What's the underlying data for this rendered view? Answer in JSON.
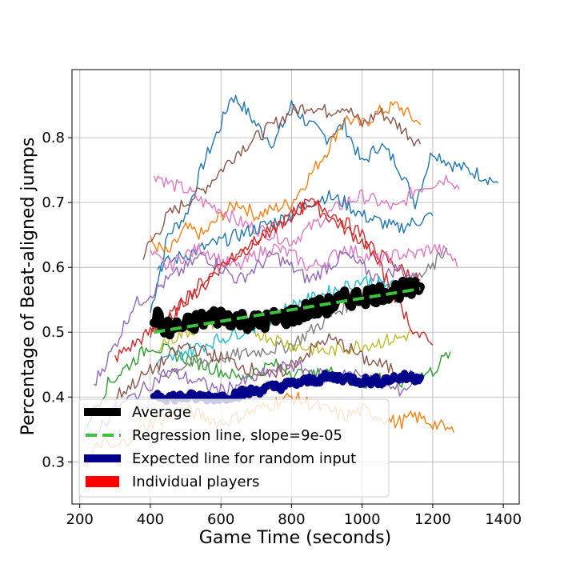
{
  "chart_data": {
    "type": "line",
    "title": "",
    "xlabel": "Game Time (seconds)",
    "ylabel": "Percentage of Beat-aligned jumps",
    "xlim": [
      178,
      1445
    ],
    "ylim": [
      0.235,
      0.905
    ],
    "xticks": [
      200,
      400,
      600,
      800,
      1000,
      1200,
      1400
    ],
    "yticks": [
      0.3,
      0.4,
      0.5,
      0.6,
      0.7,
      0.8
    ],
    "grid": true,
    "legend_position": "lower-left",
    "legend": [
      {
        "label": "Average",
        "color": "#000000",
        "style": "solid"
      },
      {
        "label": "Regression line, slope=9e-05",
        "color": "#3dc23d",
        "style": "dashed"
      },
      {
        "label": "Expected line for random input",
        "color": "#00008b",
        "style": "solid"
      },
      {
        "label": "Individual players",
        "color": "#ff0000",
        "style": "patch"
      }
    ],
    "average": {
      "name": "Average",
      "color": "#000000",
      "x": [
        410,
        450,
        500,
        550,
        600,
        650,
        700,
        750,
        800,
        850,
        900,
        950,
        1000,
        1050,
        1100,
        1150,
        1165
      ],
      "y": [
        0.525,
        0.505,
        0.51,
        0.52,
        0.525,
        0.52,
        0.515,
        0.52,
        0.525,
        0.535,
        0.54,
        0.55,
        0.555,
        0.56,
        0.565,
        0.565,
        0.57
      ]
    },
    "regression": {
      "name": "Regression line, slope=9e-05",
      "color": "#3dc23d",
      "x": [
        410,
        1165
      ],
      "y": [
        0.5,
        0.567
      ]
    },
    "random_expected": {
      "name": "Expected line for random input",
      "color": "#00008b",
      "x": [
        410,
        450,
        500,
        550,
        600,
        650,
        700,
        750,
        800,
        850,
        900,
        950,
        1000,
        1050,
        1100,
        1165
      ],
      "y": [
        0.405,
        0.4,
        0.4,
        0.4,
        0.4,
        0.405,
        0.41,
        0.415,
        0.42,
        0.425,
        0.43,
        0.43,
        0.425,
        0.425,
        0.43,
        0.43
      ]
    },
    "players": [
      {
        "color": "#1f77b4",
        "x": [
          400,
          450,
          500,
          550,
          600,
          630,
          660,
          700,
          750,
          800,
          850,
          900,
          950,
          1000,
          1050,
          1100,
          1150,
          1200,
          1250,
          1300,
          1350,
          1385
        ],
        "y": [
          0.53,
          0.65,
          0.68,
          0.76,
          0.82,
          0.865,
          0.85,
          0.82,
          0.79,
          0.85,
          0.82,
          0.8,
          0.82,
          0.76,
          0.79,
          0.76,
          0.7,
          0.78,
          0.76,
          0.75,
          0.74,
          0.73
        ]
      },
      {
        "color": "#ff7f0e",
        "x": [
          400,
          450,
          500,
          550,
          600,
          650,
          700,
          750,
          800,
          850,
          900,
          950,
          1000,
          1050,
          1100,
          1165
        ],
        "y": [
          0.64,
          0.62,
          0.66,
          0.65,
          0.68,
          0.7,
          0.68,
          0.69,
          0.7,
          0.74,
          0.78,
          0.83,
          0.82,
          0.84,
          0.85,
          0.82
        ]
      },
      {
        "color": "#8c564b",
        "x": [
          380,
          450,
          500,
          550,
          600,
          650,
          700,
          750,
          800,
          850,
          900,
          950,
          1000,
          1050,
          1100,
          1165
        ],
        "y": [
          0.62,
          0.68,
          0.7,
          0.72,
          0.75,
          0.78,
          0.8,
          0.82,
          0.84,
          0.85,
          0.84,
          0.85,
          0.82,
          0.84,
          0.82,
          0.79
        ]
      },
      {
        "color": "#e377c2",
        "x": [
          410,
          450,
          500,
          550,
          600,
          650,
          700,
          750,
          800,
          850,
          900,
          950,
          1000,
          1050,
          1100,
          1150,
          1200,
          1250,
          1275
        ],
        "y": [
          0.745,
          0.73,
          0.72,
          0.7,
          0.69,
          0.67,
          0.66,
          0.65,
          0.64,
          0.66,
          0.68,
          0.7,
          0.71,
          0.7,
          0.69,
          0.72,
          0.73,
          0.74,
          0.72
        ]
      },
      {
        "color": "#1f77b4",
        "x": [
          420,
          500,
          600,
          700,
          800,
          850,
          900,
          950,
          1000,
          1100,
          1200
        ],
        "y": [
          0.6,
          0.62,
          0.64,
          0.66,
          0.68,
          0.7,
          0.71,
          0.7,
          0.68,
          0.66,
          0.68
        ]
      },
      {
        "color": "#d62728",
        "x": [
          300,
          350,
          400,
          450,
          500,
          550,
          600,
          650,
          700,
          750,
          800,
          850,
          900,
          950,
          1000,
          1050,
          1100,
          1165
        ],
        "y": [
          0.46,
          0.48,
          0.5,
          0.52,
          0.55,
          0.58,
          0.6,
          0.62,
          0.64,
          0.66,
          0.68,
          0.7,
          0.68,
          0.66,
          0.64,
          0.62,
          0.6,
          0.58
        ]
      },
      {
        "color": "#e377c2",
        "x": [
          400,
          450,
          500,
          550,
          600,
          650,
          700,
          750,
          800,
          850,
          900,
          950,
          1000,
          1050,
          1100,
          1150,
          1200,
          1250,
          1270
        ],
        "y": [
          0.62,
          0.6,
          0.62,
          0.63,
          0.61,
          0.6,
          0.62,
          0.63,
          0.62,
          0.6,
          0.61,
          0.63,
          0.62,
          0.61,
          0.62,
          0.62,
          0.63,
          0.62,
          0.6
        ]
      },
      {
        "color": "#9467bd",
        "x": [
          240,
          300,
          350,
          400,
          450,
          500,
          550,
          600,
          650,
          700,
          750,
          800,
          850,
          900,
          950,
          1000,
          1050,
          1100,
          1150
        ],
        "y": [
          0.42,
          0.48,
          0.54,
          0.56,
          0.58,
          0.6,
          0.62,
          0.6,
          0.58,
          0.6,
          0.62,
          0.6,
          0.58,
          0.6,
          0.62,
          0.6,
          0.58,
          0.6,
          0.58
        ]
      },
      {
        "color": "#2ca02c",
        "x": [
          220,
          280,
          340,
          400,
          450,
          500,
          550,
          600,
          650,
          700,
          750,
          800,
          850,
          900,
          950,
          1000,
          1050,
          1100,
          1150,
          1200,
          1250
        ],
        "y": [
          0.36,
          0.42,
          0.45,
          0.48,
          0.47,
          0.46,
          0.45,
          0.44,
          0.43,
          0.44,
          0.45,
          0.44,
          0.43,
          0.44,
          0.43,
          0.42,
          0.43,
          0.42,
          0.43,
          0.44,
          0.47
        ]
      },
      {
        "color": "#7f7f7f",
        "x": [
          420,
          500,
          600,
          700,
          800,
          850,
          900,
          950,
          1000,
          1050,
          1100,
          1150,
          1200,
          1240
        ],
        "y": [
          0.43,
          0.45,
          0.46,
          0.47,
          0.48,
          0.5,
          0.52,
          0.54,
          0.55,
          0.56,
          0.57,
          0.58,
          0.6,
          0.63
        ]
      },
      {
        "color": "#ff7f0e",
        "x": [
          220,
          260,
          300,
          350,
          400,
          450,
          500,
          550,
          600,
          650,
          700,
          750,
          800,
          850,
          900,
          950,
          1000,
          1050,
          1100,
          1150,
          1200,
          1260
        ],
        "y": [
          0.3,
          0.33,
          0.32,
          0.34,
          0.36,
          0.37,
          0.38,
          0.37,
          0.36,
          0.37,
          0.38,
          0.39,
          0.4,
          0.39,
          0.38,
          0.37,
          0.38,
          0.37,
          0.36,
          0.37,
          0.36,
          0.345
        ]
      },
      {
        "color": "#bcbd22",
        "x": [
          420,
          500,
          600,
          700,
          800,
          900,
          1000,
          1100,
          1150
        ],
        "y": [
          0.48,
          0.5,
          0.52,
          0.5,
          0.48,
          0.47,
          0.48,
          0.49,
          0.5
        ]
      },
      {
        "color": "#17becf",
        "x": [
          420,
          500,
          600,
          700,
          800,
          900,
          1000,
          1100,
          1150
        ],
        "y": [
          0.45,
          0.47,
          0.49,
          0.51,
          0.54,
          0.56,
          0.58,
          0.57,
          0.56
        ]
      },
      {
        "color": "#d62728",
        "x": [
          400,
          450,
          500,
          550,
          600,
          650,
          700,
          750,
          800,
          850,
          900,
          950,
          1000,
          1050,
          1100,
          1150,
          1200
        ],
        "y": [
          0.5,
          0.52,
          0.55,
          0.57,
          0.6,
          0.62,
          0.64,
          0.66,
          0.68,
          0.7,
          0.69,
          0.67,
          0.65,
          0.6,
          0.55,
          0.5,
          0.48
        ]
      },
      {
        "color": "#9467bd",
        "x": [
          250,
          300,
          350,
          400,
          450,
          500,
          550,
          600,
          650,
          700,
          750,
          800,
          850,
          900,
          950,
          1000,
          1050,
          1100,
          1150
        ],
        "y": [
          0.35,
          0.38,
          0.4,
          0.42,
          0.44,
          0.43,
          0.42,
          0.41,
          0.42,
          0.43,
          0.44,
          0.45,
          0.44,
          0.43,
          0.44,
          0.43,
          0.42,
          0.41,
          0.42
        ]
      },
      {
        "color": "#8c564b",
        "x": [
          300,
          350,
          400,
          450,
          500,
          550,
          600,
          650,
          700,
          750,
          800,
          850,
          900,
          950,
          1000,
          1050,
          1100,
          1150
        ],
        "y": [
          0.4,
          0.42,
          0.44,
          0.46,
          0.48,
          0.47,
          0.46,
          0.45,
          0.44,
          0.43,
          0.45,
          0.47,
          0.49,
          0.48,
          0.46,
          0.45,
          0.44,
          0.43
        ]
      }
    ]
  }
}
